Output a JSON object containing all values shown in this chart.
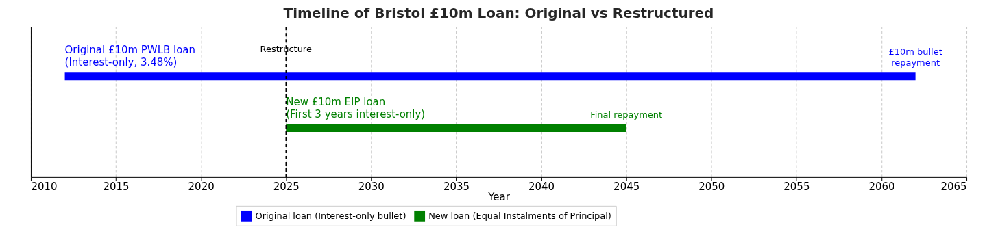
{
  "chart_data": {
    "type": "bar",
    "orientation": "horizontal",
    "title": "Timeline of Bristol £10m Loan: Original vs Restructured",
    "xlabel": "Year",
    "categories": [
      null,
      null
    ],
    "series": [
      {
        "name": "Original loan (Interest-only bullet)",
        "color": "#0000ff",
        "values": [
          50,
          null
        ],
        "base": [
          2012,
          null
        ]
      },
      {
        "name": "New loan (Equal Instalments of Principal)",
        "color": "#008000",
        "values": [
          null,
          20
        ],
        "base": [
          null,
          2025
        ]
      }
    ],
    "xlim": [
      2010,
      2065
    ],
    "xticks": [
      2010,
      2015,
      2020,
      2025,
      2030,
      2035,
      2040,
      2045,
      2050,
      2055,
      2060,
      2065
    ],
    "ref_lines": [
      {
        "axis": "x",
        "value": 2025,
        "label": "Restructure",
        "color": "#000000",
        "line_style": "dashed"
      }
    ],
    "annotations": [
      "Original £10m PWLB loan\n(Interest-only, 3.48%)",
      "£10m bullet\nrepayment",
      "New £10m EIP loan\n(First 3 years interest-only)",
      "Final repayment"
    ],
    "grid": "x",
    "legend": "bottom"
  }
}
